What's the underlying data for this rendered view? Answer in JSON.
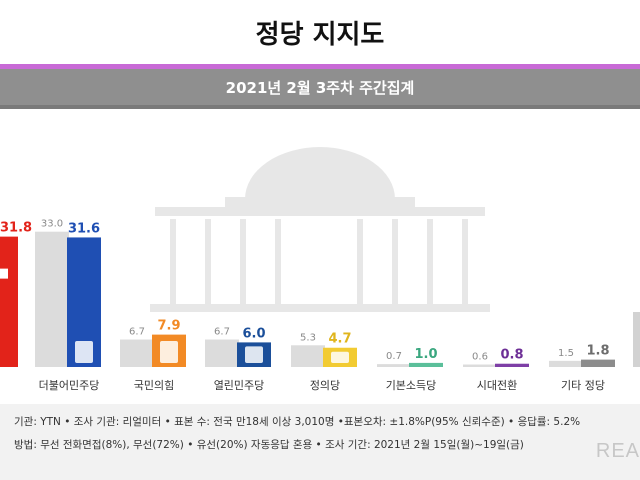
{
  "header": {
    "title": "정당 지지도",
    "subtitle": "2021년 2월 3주차 주간집계"
  },
  "chart_data": {
    "type": "bar",
    "categories": [
      "더불어민주당",
      "국민의힘",
      "열린민주당",
      "정의당",
      "기본소득당",
      "시대전환",
      "기타 정당"
    ],
    "first_partial_value": "31.8",
    "series": [
      {
        "values": [
          33.0,
          6.7,
          6.7,
          5.3,
          0.7,
          0.6,
          1.5
        ],
        "color": "#dcdcdc"
      },
      {
        "values": [
          31.6,
          7.9,
          6.0,
          4.7,
          1.0,
          0.8,
          1.8
        ]
      }
    ],
    "bar_colors": [
      "#1f4fb3",
      "#f28a25",
      "#1b4f9a",
      "#f2cb32",
      "#5bbf9a",
      "#7e3fa6",
      "#8c8c8c"
    ],
    "value_label_colors": [
      "#1f4fb3",
      "#f28a25",
      "#1b4f9a",
      "#e0b51d",
      "#3aa77f",
      "#6d2f96",
      "#6d6d6d"
    ],
    "left_partial_bar_color": "#e2231a"
  },
  "footer": {
    "line1": "기관: YTN • 조사 기관: 리얼미터 • 표본 수: 전국 만18세 이상 3,010명 •표본오차: ±1.8%P(95% 신뢰수준) • 응답률: 5.2%",
    "line2": "방법: 무선 전화면접(8%), 무선(72%) • 유선(20%) 자동응답 혼용 • 조사 기간: 2021년 2월 15일(월)~19일(금)",
    "logo_text": "REA"
  },
  "icons": [
    "capitol-building-icon",
    "party-logo-icon"
  ]
}
